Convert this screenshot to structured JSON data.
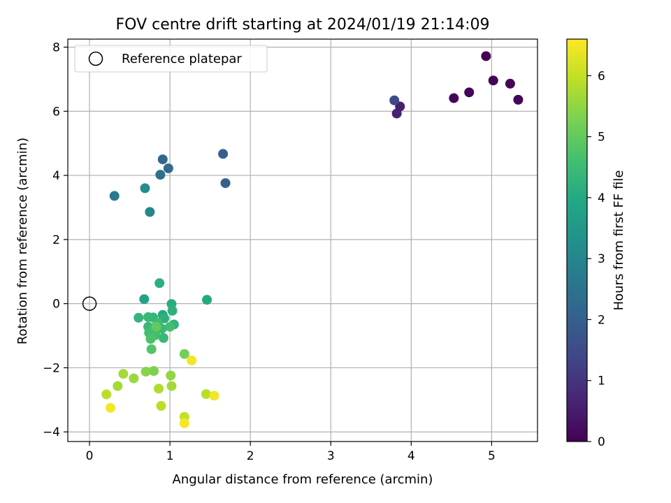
{
  "chart_data": {
    "type": "scatter",
    "title": "FOV centre drift starting at 2024/01/19 21:14:09",
    "xlabel": "Angular distance from reference (arcmin)",
    "ylabel": "Rotation from reference (arcmin)",
    "xlim": [
      -0.27,
      5.57
    ],
    "ylim": [
      -4.3,
      8.25
    ],
    "xticks": [
      0,
      1,
      2,
      3,
      4,
      5
    ],
    "yticks": [
      -4,
      -2,
      0,
      2,
      4,
      6,
      8
    ],
    "grid": true,
    "legend": {
      "placement": "top-left",
      "entries": [
        "Reference platepar"
      ]
    },
    "reference_point": {
      "x": 0,
      "y": 0,
      "label": "Reference platepar"
    },
    "colorbar": {
      "label": "Hours from first FF file",
      "colormap": "viridis",
      "range": [
        0,
        6.6
      ],
      "ticks": [
        0,
        1,
        2,
        3,
        4,
        5,
        6
      ]
    },
    "points": [
      {
        "x": 4.93,
        "y": 7.72,
        "t": 0.0
      },
      {
        "x": 5.02,
        "y": 6.96,
        "t": 0.05
      },
      {
        "x": 5.23,
        "y": 6.86,
        "t": 0.05
      },
      {
        "x": 4.72,
        "y": 6.59,
        "t": 0.1
      },
      {
        "x": 4.53,
        "y": 6.41,
        "t": 0.1
      },
      {
        "x": 5.33,
        "y": 6.36,
        "t": 0.1
      },
      {
        "x": 3.86,
        "y": 6.15,
        "t": 0.6
      },
      {
        "x": 3.82,
        "y": 5.93,
        "t": 0.6
      },
      {
        "x": 3.79,
        "y": 6.34,
        "t": 1.5
      },
      {
        "x": 1.66,
        "y": 4.67,
        "t": 2.0
      },
      {
        "x": 1.69,
        "y": 3.76,
        "t": 2.0
      },
      {
        "x": 0.91,
        "y": 4.5,
        "t": 2.2
      },
      {
        "x": 0.98,
        "y": 4.22,
        "t": 2.3
      },
      {
        "x": 0.88,
        "y": 4.02,
        "t": 2.4
      },
      {
        "x": 0.31,
        "y": 3.36,
        "t": 2.7
      },
      {
        "x": 0.75,
        "y": 2.86,
        "t": 3.0
      },
      {
        "x": 0.69,
        "y": 3.6,
        "t": 3.2
      },
      {
        "x": 0.68,
        "y": 0.14,
        "t": 3.8
      },
      {
        "x": 1.46,
        "y": 0.12,
        "t": 4.0
      },
      {
        "x": 0.87,
        "y": 0.64,
        "t": 4.2
      },
      {
        "x": 0.91,
        "y": -0.35,
        "t": 4.0
      },
      {
        "x": 1.02,
        "y": -0.01,
        "t": 4.1
      },
      {
        "x": 1.03,
        "y": -0.22,
        "t": 4.2
      },
      {
        "x": 0.93,
        "y": -0.46,
        "t": 4.2
      },
      {
        "x": 0.61,
        "y": -0.44,
        "t": 4.3
      },
      {
        "x": 0.79,
        "y": -0.43,
        "t": 4.3
      },
      {
        "x": 1.05,
        "y": -0.65,
        "t": 4.3
      },
      {
        "x": 0.73,
        "y": -0.42,
        "t": 4.4
      },
      {
        "x": 0.73,
        "y": -0.72,
        "t": 4.4
      },
      {
        "x": 0.79,
        "y": -0.75,
        "t": 4.5
      },
      {
        "x": 0.85,
        "y": -0.6,
        "t": 4.5
      },
      {
        "x": 0.9,
        "y": -0.78,
        "t": 4.4
      },
      {
        "x": 1.0,
        "y": -0.72,
        "t": 4.6
      },
      {
        "x": 0.74,
        "y": -0.91,
        "t": 4.6
      },
      {
        "x": 0.82,
        "y": -0.98,
        "t": 4.6
      },
      {
        "x": 0.92,
        "y": -1.07,
        "t": 4.4
      },
      {
        "x": 0.76,
        "y": -1.1,
        "t": 4.7
      },
      {
        "x": 0.77,
        "y": -1.42,
        "t": 4.8
      },
      {
        "x": 0.83,
        "y": -0.72,
        "t": 5.0
      },
      {
        "x": 1.18,
        "y": -1.57,
        "t": 5.2
      },
      {
        "x": 0.8,
        "y": -2.1,
        "t": 5.3
      },
      {
        "x": 0.7,
        "y": -2.12,
        "t": 5.4
      },
      {
        "x": 1.01,
        "y": -2.24,
        "t": 5.5
      },
      {
        "x": 0.42,
        "y": -2.19,
        "t": 5.7
      },
      {
        "x": 0.55,
        "y": -2.33,
        "t": 5.6
      },
      {
        "x": 0.35,
        "y": -2.57,
        "t": 5.7
      },
      {
        "x": 1.02,
        "y": -2.57,
        "t": 5.7
      },
      {
        "x": 0.86,
        "y": -2.65,
        "t": 5.8
      },
      {
        "x": 0.21,
        "y": -2.83,
        "t": 5.9
      },
      {
        "x": 1.45,
        "y": -2.82,
        "t": 5.9
      },
      {
        "x": 0.89,
        "y": -3.19,
        "t": 5.9
      },
      {
        "x": 1.18,
        "y": -3.53,
        "t": 6.0
      },
      {
        "x": 1.27,
        "y": -1.77,
        "t": 6.5
      },
      {
        "x": 1.55,
        "y": -2.87,
        "t": 6.5
      },
      {
        "x": 0.26,
        "y": -3.25,
        "t": 6.5
      },
      {
        "x": 1.18,
        "y": -3.73,
        "t": 6.55
      }
    ]
  }
}
